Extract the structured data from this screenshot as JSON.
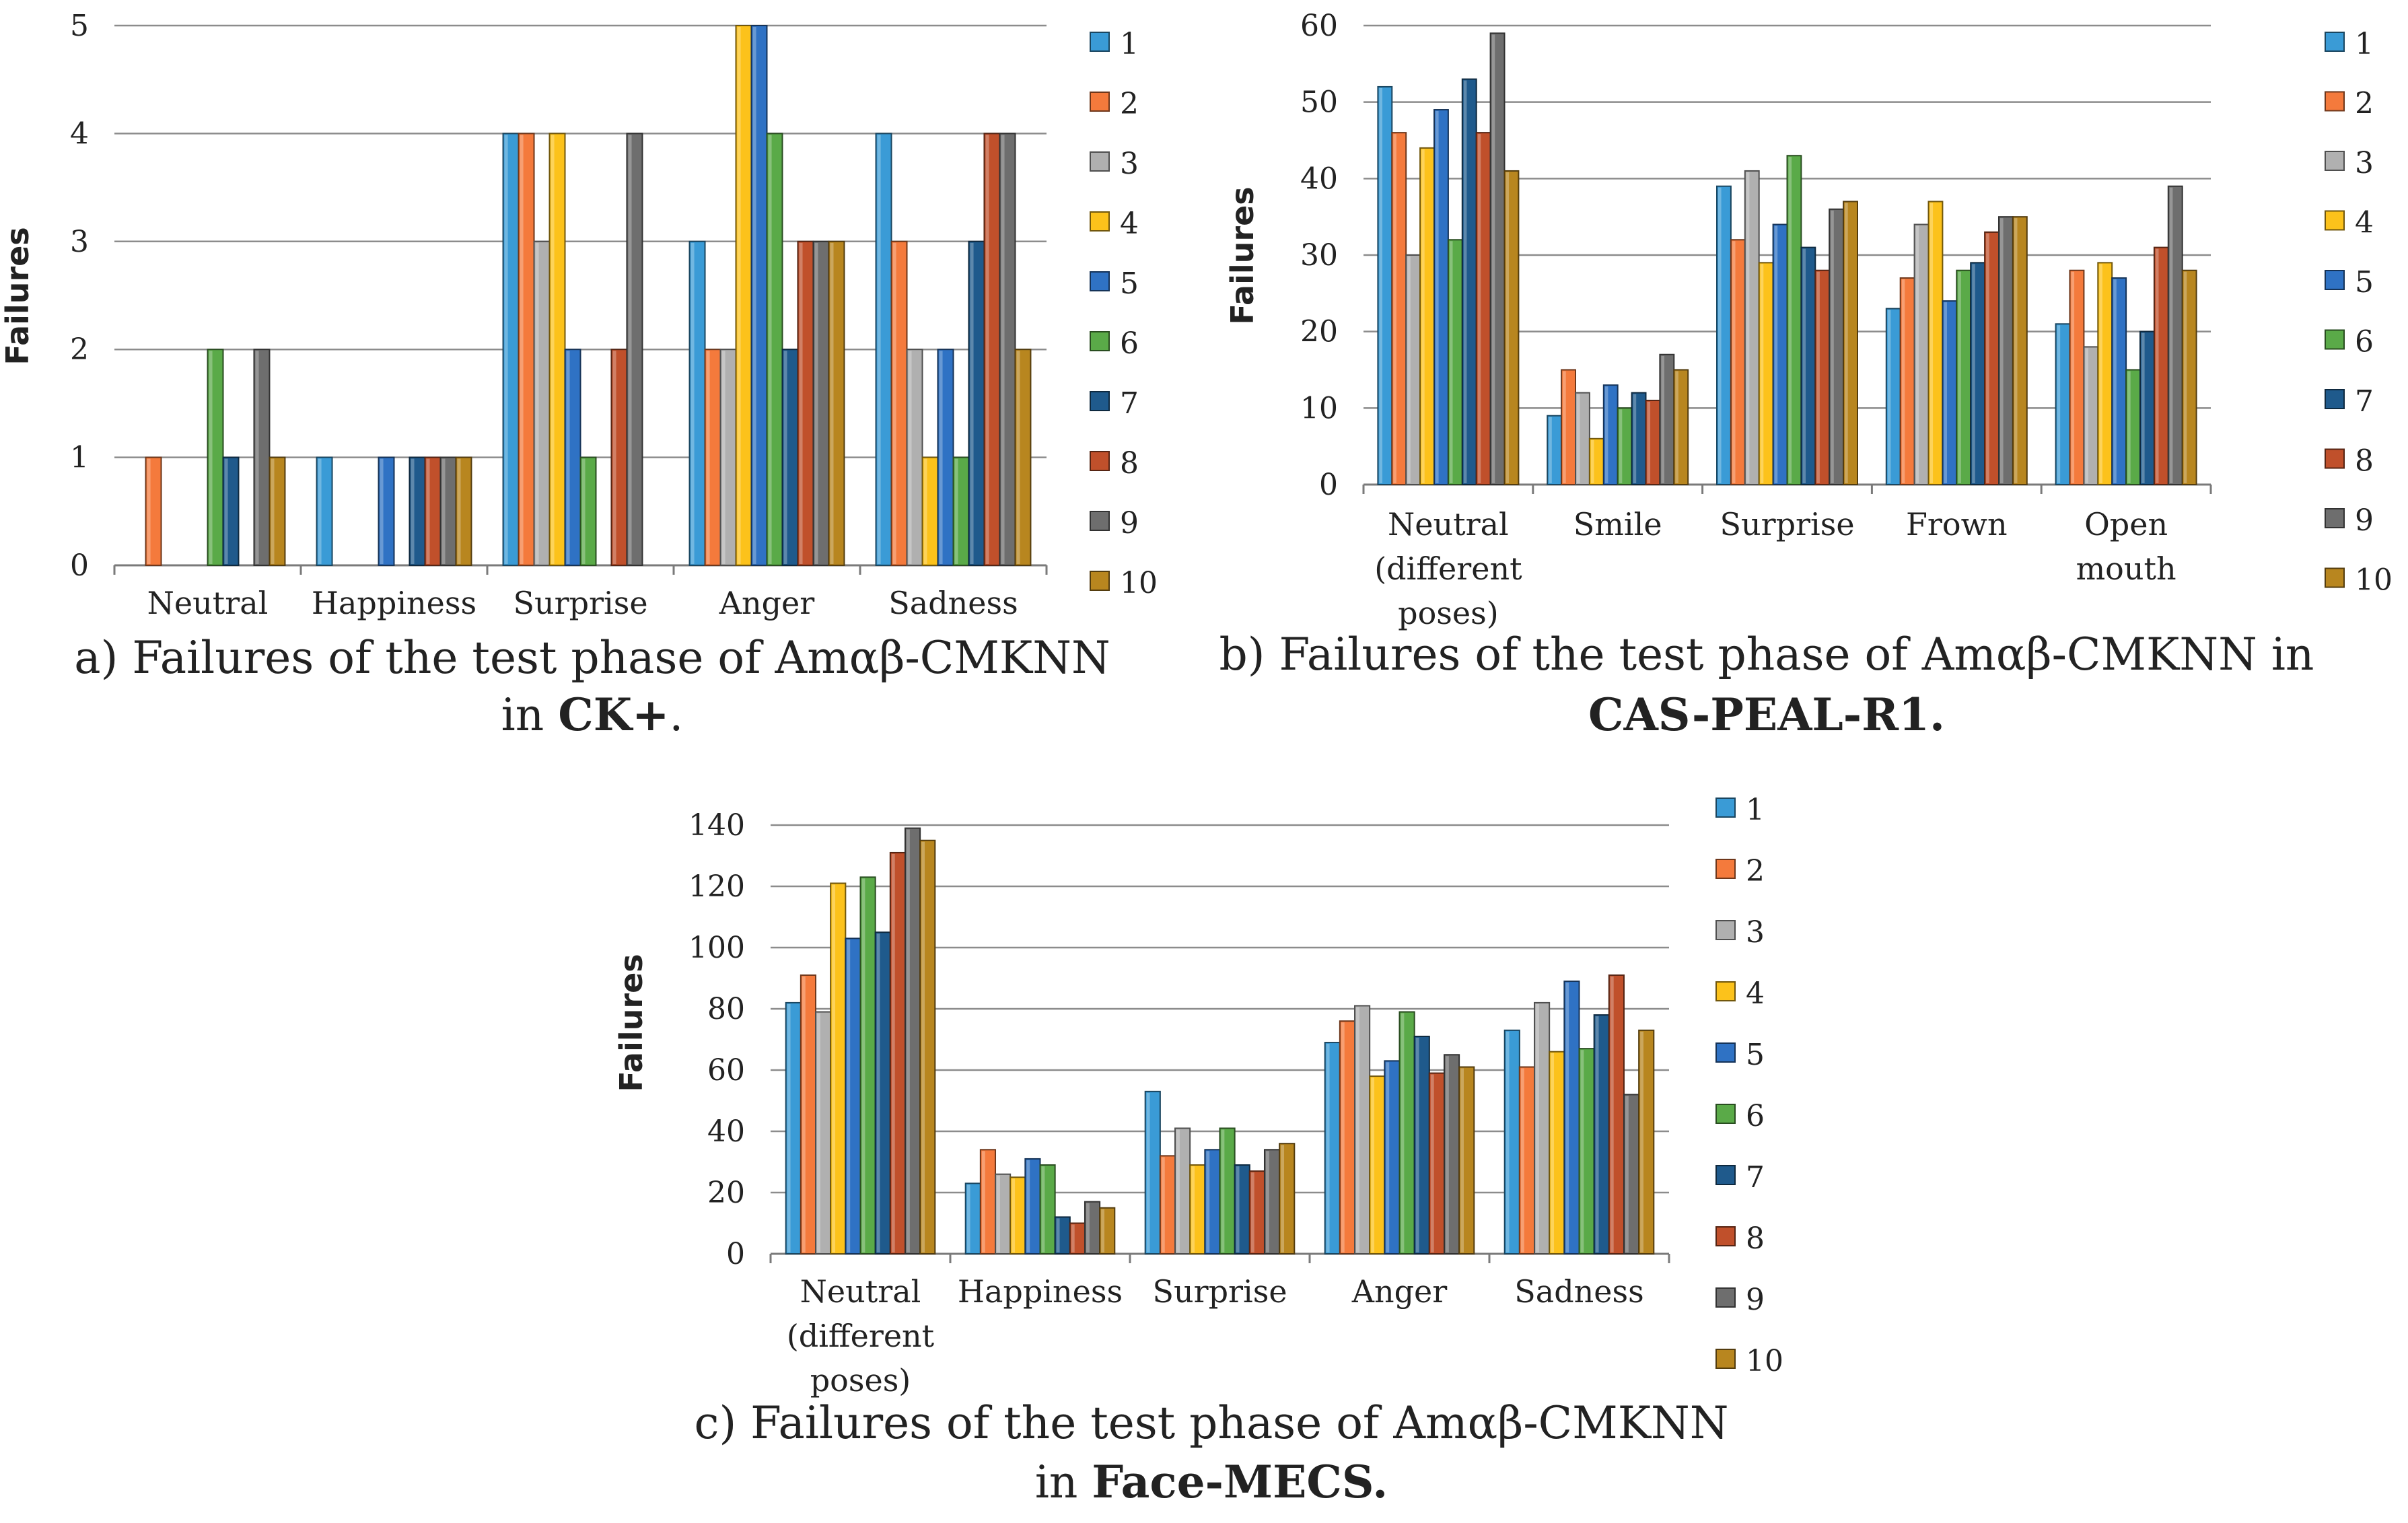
{
  "series_colors": [
    "#3a9bd6",
    "#f47a3c",
    "#b0b0b0",
    "#fcc21b",
    "#2f72c4",
    "#5aaa48",
    "#1f5a8c",
    "#c0502b",
    "#6e6e6e",
    "#b8861f"
  ],
  "chart_data": [
    {
      "type": "bar",
      "title": "a) Failures of the test phase of Amαβ-CMKNN in CK+.",
      "caption_line1": "a) Failures of the test phase of Amαβ-CMKNN",
      "caption_line2_prefix": "in ",
      "caption_line2_bold": "CK+",
      "caption_line2_suffix": ".",
      "ylabel": "Failures",
      "xlabel": "",
      "ylim": [
        0,
        5
      ],
      "yticks": [
        "0",
        "1",
        "2",
        "3",
        "4",
        "5"
      ],
      "categories": [
        [
          "Neutral"
        ],
        [
          "Happiness"
        ],
        [
          "Surprise"
        ],
        [
          "Anger"
        ],
        [
          "Sadness"
        ]
      ],
      "series": [
        {
          "name": "1",
          "values": [
            0,
            1,
            4,
            3,
            4
          ]
        },
        {
          "name": "2",
          "values": [
            1,
            0,
            4,
            2,
            3
          ]
        },
        {
          "name": "3",
          "values": [
            0,
            0,
            3,
            2,
            2
          ]
        },
        {
          "name": "4",
          "values": [
            0,
            0,
            4,
            5,
            1
          ]
        },
        {
          "name": "5",
          "values": [
            0,
            1,
            2,
            5,
            2
          ]
        },
        {
          "name": "6",
          "values": [
            2,
            0,
            1,
            4,
            1
          ]
        },
        {
          "name": "7",
          "values": [
            1,
            1,
            0,
            2,
            3
          ]
        },
        {
          "name": "8",
          "values": [
            0,
            1,
            2,
            3,
            4
          ]
        },
        {
          "name": "9",
          "values": [
            2,
            1,
            4,
            3,
            4
          ]
        },
        {
          "name": "10",
          "values": [
            1,
            1,
            0,
            3,
            2
          ]
        }
      ],
      "legend_position": "right"
    },
    {
      "type": "bar",
      "title": "b) Failures of the test phase of Amαβ-CMKNN in CAS-PEAL-R1.",
      "caption_line1": "b) Failures of the test phase of Amαβ-CMKNN in",
      "caption_line2_prefix": "",
      "caption_line2_bold": "CAS-PEAL-R1.",
      "caption_line2_suffix": "",
      "ylabel": "Failures",
      "xlabel": "",
      "ylim": [
        0,
        60
      ],
      "yticks": [
        "0",
        "10",
        "20",
        "30",
        "40",
        "50",
        "60"
      ],
      "categories": [
        [
          "Neutral",
          "(different",
          "poses)"
        ],
        [
          "Smile"
        ],
        [
          "Surprise"
        ],
        [
          "Frown"
        ],
        [
          "Open",
          "mouth"
        ]
      ],
      "series": [
        {
          "name": "1",
          "values": [
            52,
            9,
            39,
            23,
            21
          ]
        },
        {
          "name": "2",
          "values": [
            46,
            15,
            32,
            27,
            28
          ]
        },
        {
          "name": "3",
          "values": [
            30,
            12,
            41,
            34,
            18
          ]
        },
        {
          "name": "4",
          "values": [
            44,
            6,
            29,
            37,
            29
          ]
        },
        {
          "name": "5",
          "values": [
            49,
            13,
            34,
            24,
            27
          ]
        },
        {
          "name": "6",
          "values": [
            32,
            10,
            43,
            28,
            15
          ]
        },
        {
          "name": "7",
          "values": [
            53,
            12,
            31,
            29,
            20
          ]
        },
        {
          "name": "8",
          "values": [
            46,
            11,
            28,
            33,
            31
          ]
        },
        {
          "name": "9",
          "values": [
            59,
            17,
            36,
            35,
            39
          ]
        },
        {
          "name": "10",
          "values": [
            41,
            15,
            37,
            35,
            28
          ]
        }
      ],
      "legend_position": "right"
    },
    {
      "type": "bar",
      "title": "c) Failures of the test phase of Amαβ-CMKNN in Face-MECS.",
      "caption_line1": "c) Failures of the test phase of Amαβ-CMKNN",
      "caption_line2_prefix": "in ",
      "caption_line2_bold": "Face-MECS.",
      "caption_line2_suffix": "",
      "ylabel": "Failures",
      "xlabel": "",
      "ylim": [
        0,
        140
      ],
      "yticks": [
        "0",
        "20",
        "40",
        "60",
        "80",
        "100",
        "120",
        "140"
      ],
      "categories": [
        [
          "Neutral",
          "(different",
          "poses)"
        ],
        [
          "Happiness"
        ],
        [
          "Surprise"
        ],
        [
          "Anger"
        ],
        [
          "Sadness"
        ]
      ],
      "series": [
        {
          "name": "1",
          "values": [
            82,
            23,
            53,
            69,
            73
          ]
        },
        {
          "name": "2",
          "values": [
            91,
            34,
            32,
            76,
            61
          ]
        },
        {
          "name": "3",
          "values": [
            79,
            26,
            41,
            81,
            82
          ]
        },
        {
          "name": "4",
          "values": [
            121,
            25,
            29,
            58,
            66
          ]
        },
        {
          "name": "5",
          "values": [
            103,
            31,
            34,
            63,
            89
          ]
        },
        {
          "name": "6",
          "values": [
            123,
            29,
            41,
            79,
            67
          ]
        },
        {
          "name": "7",
          "values": [
            105,
            12,
            29,
            71,
            78
          ]
        },
        {
          "name": "8",
          "values": [
            131,
            10,
            27,
            59,
            91
          ]
        },
        {
          "name": "9",
          "values": [
            139,
            17,
            34,
            65,
            52
          ]
        },
        {
          "name": "10",
          "values": [
            135,
            15,
            36,
            61,
            73
          ]
        }
      ],
      "legend_position": "right"
    }
  ]
}
